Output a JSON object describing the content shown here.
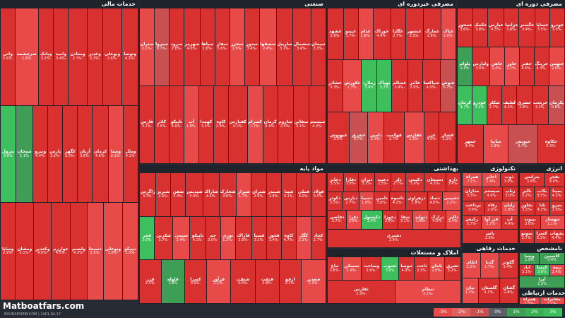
{
  "sectors": [
    {
      "key": "mali",
      "title": "خدمات مالی",
      "tiles": [
        [
          "وتوصا",
          "-4.1%"
        ],
        [
          "وبوعلی",
          "-2.6%"
        ],
        [
          "وغدیر",
          "-3.3%"
        ],
        [
          "ومعادن",
          "-2.7%"
        ],
        [
          "وامید",
          "-3.4%"
        ],
        [
          "وبانک",
          "-3.2%"
        ],
        [
          "سرچشمه",
          "-2.3%"
        ],
        [
          "واتی",
          "-3.5%"
        ],
        [
          "وملل",
          "-4.1%"
        ],
        [
          "وسنا",
          "-2.1%"
        ],
        [
          "کرمان",
          "-4.6%"
        ],
        [
          "آریان",
          "-3.6%"
        ],
        [
          "کگهر",
          "-5.0%"
        ],
        [
          "پارس",
          "-3.2%"
        ],
        [
          "ونیرو",
          "-4.4%"
        ],
        [
          "سبحان",
          "1.1%"
        ],
        [
          "پترول",
          "3.0%"
        ],
        [
          "تیپیکو",
          "-1.5%"
        ],
        [
          "وبوعلی",
          "-2.0%"
        ],
        [
          "دسبحا",
          "-2.0%"
        ],
        [
          "ولصنم",
          "-4.3%"
        ],
        [
          "خوارزم",
          "-4.5%"
        ],
        [
          "وکغدیر",
          "-4.0%"
        ],
        [
          "ومشان",
          "-3.1%"
        ],
        [
          "وساپا",
          "-2.9%"
        ]
      ]
    },
    {
      "key": "sanati",
      "title": "صنعتی",
      "tiles": [
        [
          "سیمان",
          "-3.3%"
        ],
        [
          "سشمال",
          "-3.4%"
        ],
        [
          "ساربیل",
          "-3.1%"
        ],
        [
          "سصفها",
          "-2.4%"
        ],
        [
          "سدور",
          "-3.4%"
        ],
        [
          "سخزر",
          "-1.9%"
        ],
        [
          "سفار",
          "-3.6%"
        ],
        [
          "سپاها",
          "-2.8%"
        ],
        [
          "سهرمز",
          "-4.0%"
        ],
        [
          "سرود",
          "-2.8%"
        ],
        [
          "سبزوا",
          "-0.7%"
        ],
        [
          "ستران",
          "-2.1%"
        ],
        [
          "سیستم",
          "-4.2%"
        ],
        [
          "سقاین",
          "-3.1%"
        ],
        [
          "ساروم",
          "-2.5%"
        ],
        [
          "کرمان",
          "-3.4%"
        ],
        [
          "کسرام",
          "-1.7%"
        ],
        [
          "کفپارس",
          "-4.1%"
        ],
        [
          "کاوه",
          "-2.9%"
        ],
        [
          "کهمدا",
          "-3.5%"
        ],
        [
          "آپ",
          "-1.8%"
        ],
        [
          "تاپیکو",
          "-4.0%"
        ],
        [
          "کاذر",
          "-2.5%"
        ],
        [
          "فارس",
          "-3.1%"
        ]
      ]
    },
    {
      "key": "khodro",
      "title": "مصرفی غیردوره ای",
      "tiles": [
        [
          "غپاک",
          "-2.0%"
        ],
        [
          "غمارگ",
          "-2.8%"
        ],
        [
          "غبشهر",
          "-3.5%"
        ],
        [
          "غگلپا",
          "-2.7%"
        ],
        [
          "خوراک",
          "-4.4%"
        ],
        [
          "غدام",
          "-1.6%"
        ],
        [
          "غپینو",
          "-3.7%"
        ],
        [
          "غشهد",
          "-2.8%"
        ],
        [
          "غنوش",
          "-0.7%"
        ],
        [
          "شپاکسا",
          "-4.0%"
        ],
        [
          "غالبر",
          "-2.9%"
        ],
        [
          "غسالم",
          "-3.4%"
        ],
        [
          "بهپاک",
          "3.2%"
        ],
        [
          "زملارد",
          "3.9%"
        ],
        [
          "غکورش",
          "-1.7%"
        ],
        [
          "غشاذر",
          "-3.3%"
        ],
        [
          "قشکر",
          "-3.2%"
        ],
        [
          "غزر",
          "-4.5%"
        ],
        [
          "غفارس",
          "-1.2%"
        ],
        [
          "قهکمت",
          "-2.7%"
        ],
        [
          "دامین",
          "-1.5%"
        ],
        [
          "خشرق",
          "-0.7%"
        ],
        [
          "غبهنوش",
          "-3.0%"
        ]
      ]
    },
    {
      "key": "dore",
      "title": "مصرفی دوره ای",
      "tiles": [
        [
          "خودرو",
          "-3.0%"
        ],
        [
          "خساپا",
          "-3.5%"
        ],
        [
          "خگستر",
          "-3.4%"
        ],
        [
          "خزامیا",
          "-3.8%"
        ],
        [
          "خپارس",
          "-4.3%"
        ],
        [
          "خکمک",
          "-3.8%"
        ],
        [
          "خمحور",
          "-3.6%"
        ],
        [
          "خبهمن",
          "-2.0%"
        ],
        [
          "خرینگ",
          "-4.3%"
        ],
        [
          "خفنر",
          "-4.5%"
        ],
        [
          "خاور",
          "-1.1%"
        ],
        [
          "خاهن",
          "-1.4%"
        ],
        [
          "ولپارس",
          "-3.0%"
        ],
        [
          "پلولم",
          "2.4%"
        ],
        [
          "پکرمان",
          "-0.8%"
        ],
        [
          "خریخت",
          "-3.3%"
        ],
        [
          "خشرق",
          "-2.8%"
        ],
        [
          "لطیف",
          "-4.2%"
        ],
        [
          "شکلر",
          "-2.7%"
        ],
        [
          "خودرو",
          "3.2%"
        ],
        [
          "کرمان",
          "4.7%"
        ],
        [
          "خکاوه",
          "-2.5%"
        ],
        [
          "خپویش",
          "-0.7%"
        ],
        [
          "سایپا",
          "-1.9%"
        ],
        [
          "خمهر",
          "-3.4%"
        ]
      ]
    },
    {
      "key": "mavad",
      "title": "مواد پایه",
      "tiles": [
        [
          "فولاد",
          "-3.5%"
        ],
        [
          "فملی",
          "-3.0%"
        ],
        [
          "شپنا",
          "-3.1%"
        ],
        [
          "شبندر",
          "-2.8%"
        ],
        [
          "شتران",
          "-2.9%"
        ],
        [
          "شیراز",
          "-1.7%"
        ],
        [
          "شخارک",
          "-3.6%"
        ],
        [
          "شاراک",
          "-4.4%"
        ],
        [
          "شپدیس",
          "-3.0%"
        ],
        [
          "شفن",
          "-3.3%"
        ],
        [
          "شبریز",
          "-2.6%"
        ],
        [
          "زاگرس",
          "-3.3%"
        ],
        [
          "کچاد",
          "-2.7%"
        ],
        [
          "کگل",
          "-2.2%"
        ],
        [
          "کاوه",
          "-4.7%"
        ],
        [
          "فخوز",
          "-3.4%"
        ],
        [
          "فسپا",
          "-3.1%"
        ],
        [
          "فاراک",
          "-2.5%"
        ],
        [
          "نوری",
          "-1.2%"
        ],
        [
          "جم",
          "-3.0%"
        ],
        [
          "تاپیکو",
          "-4.1%"
        ],
        [
          "شیمی",
          "-2.4%"
        ],
        [
          "شکربن",
          "-3.7%"
        ],
        [
          "فجر",
          "3.0%"
        ],
        [
          "شغدیر",
          "-2.3%"
        ],
        [
          "ارفع",
          "-3.1%"
        ],
        [
          "فنفت",
          "-2.8%"
        ],
        [
          "شنفت",
          "-4.0%"
        ],
        [
          "فرآور",
          "-2.1%"
        ],
        [
          "کسرا",
          "-3.6%"
        ],
        [
          "فلوله",
          "1.8%"
        ],
        [
          "فزر",
          "-2.5%"
        ]
      ]
    },
    {
      "key": "behdasht",
      "title": "بهداشتی",
      "tiles": [
        [
          "دارو",
          "-3.4%"
        ],
        [
          "دسبحان",
          "-4.3%"
        ],
        [
          "دکیمی",
          "-3.0%"
        ],
        [
          "دلر",
          "-2.7%"
        ],
        [
          "دعبید",
          "-2.5%"
        ],
        [
          "دیران",
          "-3.1%"
        ],
        [
          "دفارا",
          "-3.9%"
        ],
        [
          "دجابر",
          "-3.5%"
        ],
        [
          "دشیمی",
          "-2.2%"
        ],
        [
          "دتماد",
          "-4.0%"
        ],
        [
          "دزهراوی",
          "-2.8%"
        ],
        [
          "داسوه",
          "-4.2%"
        ],
        [
          "دامین",
          "-3.6%"
        ],
        [
          "دسینا",
          "-1.9%"
        ],
        [
          "دپارس",
          "-2.7%"
        ],
        [
          "دکوثر",
          "-3.3%"
        ],
        [
          "دالبر",
          "-2.4%"
        ],
        [
          "درازک",
          "-4.0%"
        ],
        [
          "دتولید",
          "-1.8%"
        ],
        [
          "شفا",
          "-3.1%"
        ],
        [
          "دخوزا",
          "-2.6%"
        ],
        [
          "دکپسول",
          "3.4%"
        ],
        [
          "دفرا",
          "-2.0%"
        ],
        [
          "دقاضی",
          "-3.7%"
        ],
        [
          "دشیری",
          "-2.9%"
        ]
      ]
    },
    {
      "key": "enerji",
      "title": "انرژی",
      "tiles": [
        [
          "بفجر",
          "-4.0%"
        ],
        [
          "بترانس",
          "-3.9%"
        ],
        [
          "بمپنا",
          "-4.2%"
        ],
        [
          "بکاب",
          "-3.5%"
        ],
        [
          "بالبر",
          "-3.2%"
        ],
        [
          "بنیرو",
          "-2.6%"
        ],
        [
          "تابا",
          "-4.3%"
        ],
        [
          "بخاور",
          "-3.2%"
        ],
        [
          "ثبهساز",
          "-2.1%"
        ],
        [
          "بپیوند",
          "-3.0%"
        ],
        [
          "بشهاب",
          "-4.4%"
        ],
        [
          "کسرا",
          "-3.1%"
        ],
        [
          "بموتو",
          "-2.7%"
        ]
      ]
    },
    {
      "key": "teknoloji",
      "title": "تکنولوژی",
      "tiles": [
        [
          "ذوب",
          "-3.0%"
        ],
        [
          "اخابر",
          "-1.4%"
        ],
        [
          "همراه",
          "-2.1%"
        ],
        [
          "رتاپ",
          "-3.0%"
        ],
        [
          "سیستم",
          "-4.0%"
        ],
        [
          "مداران",
          "-3.3%"
        ],
        [
          "رایان",
          "-1.8%"
        ],
        [
          "رفاه",
          "-2.6%"
        ],
        [
          "پرداخت",
          "-3.0%"
        ],
        [
          "آپ",
          "-4.4%"
        ],
        [
          "فن آوا",
          "-1.7%"
        ],
        [
          "رکیش",
          "-3.7%"
        ],
        [
          "پاس",
          "-2.9%"
        ]
      ]
    },
    {
      "key": "amlak",
      "title": "املاک و مستغلات",
      "tiles": [
        [
          "ثشرق",
          "-3.2%"
        ],
        [
          "ثامان",
          "-2.0%"
        ],
        [
          "ثاخت",
          "-3.3%"
        ],
        [
          "ثنوسا",
          "-4.0%"
        ],
        [
          "ثجنوب",
          "3.0%"
        ],
        [
          "وساخت",
          "-2.6%"
        ],
        [
          "ثمسکن",
          "-1.9%"
        ],
        [
          "ثباغ",
          "-3.8%"
        ],
        [
          "ثنظام",
          "-2.2%"
        ],
        [
          "ثفارس",
          "-2.9%"
        ]
      ]
    },
    {
      "key": "refahi",
      "title": "خدمات رفاهی",
      "tiles": [
        [
          "گکوثر",
          "-3.4%"
        ],
        [
          "گدنا",
          "-1.7%"
        ],
        [
          "اتکای",
          "-2.2%"
        ],
        [
          "گشان",
          "-2.8%"
        ],
        [
          "گلستان",
          "-4.1%"
        ],
        [
          "نیان",
          "-1.3%"
        ]
      ]
    },
    {
      "key": "namashkhas",
      "title": "نامشخص",
      "tiles": [
        [
          "کاسپین",
          "0.4%"
        ],
        [
          "وپسا",
          "1.8%"
        ],
        [
          "بیمه",
          "-2.4%"
        ],
        [
          "کیمیا",
          "3.0%"
        ],
        [
          "آباد",
          "-3.1%"
        ],
        [
          "آپرا",
          "2.2%"
        ]
      ]
    },
    {
      "key": "ertebati",
      "title": "خدمات ارتباطی",
      "tiles": [
        [
          "مخابرات",
          "-2.1%"
        ],
        [
          "همراه",
          "-1.0%"
        ]
      ]
    }
  ],
  "legend": [
    "-3%",
    "-2%",
    "-1%",
    "0%",
    "1%",
    "2%",
    "3%"
  ],
  "brand": {
    "name": "Matboatfars.com",
    "sub": "BOURSEVIEW.COM | 1401.04.17"
  }
}
